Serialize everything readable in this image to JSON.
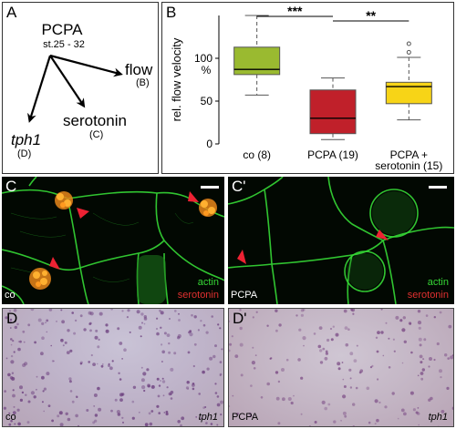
{
  "panels": {
    "a": {
      "letter": "A",
      "center_title": "PCPA",
      "center_subtitle": "st.25 - 32",
      "targets": [
        {
          "name": "flow",
          "ref": "(B)"
        },
        {
          "name": "serotonin",
          "ref": "(C)"
        },
        {
          "name": "tph1",
          "ref": "(D)"
        }
      ]
    },
    "b": {
      "letter": "B"
    },
    "c": {
      "letter": "C",
      "label_bottom_left": "co",
      "legend_actin": "actin",
      "legend_serotonin": "serotonin"
    },
    "c2": {
      "letter": "C'",
      "label_bottom_left": "PCPA",
      "legend_actin": "actin",
      "legend_serotonin": "serotonin"
    },
    "d": {
      "letter": "D",
      "label_bottom_left": "co",
      "label_bottom_right": "tph1"
    },
    "d2": {
      "letter": "D'",
      "label_bottom_left": "PCPA",
      "label_bottom_right": "tph1"
    }
  },
  "colors": {
    "actin": "#33dd33",
    "serotonin": "#dd2222",
    "arrowhead": "#ee2233",
    "box_co": "#9aba30",
    "box_pcpa": "#c0202a",
    "box_pcpa_serotonin": "#f7d417"
  },
  "chart_data": {
    "type": "box",
    "ylabel": "rel. flow velocity\n%",
    "ylim": [
      0,
      150
    ],
    "yticks": [
      0,
      50,
      100
    ],
    "categories": [
      "co (8)",
      "PCPA (19)",
      "PCPA +\nserotonin (15)"
    ],
    "boxes": [
      {
        "min": 57,
        "q1": 81,
        "median": 87,
        "q3": 113,
        "max": 150,
        "outliers": []
      },
      {
        "min": 5,
        "q1": 12,
        "median": 30,
        "q3": 63,
        "max": 77,
        "outliers": []
      },
      {
        "min": 28,
        "q1": 47,
        "median": 67,
        "q3": 72,
        "max": 101,
        "outliers": [
          107,
          117
        ]
      }
    ],
    "significance": [
      {
        "between": [
          0,
          1
        ],
        "label": "***"
      },
      {
        "between": [
          1,
          2
        ],
        "label": "**"
      }
    ]
  }
}
